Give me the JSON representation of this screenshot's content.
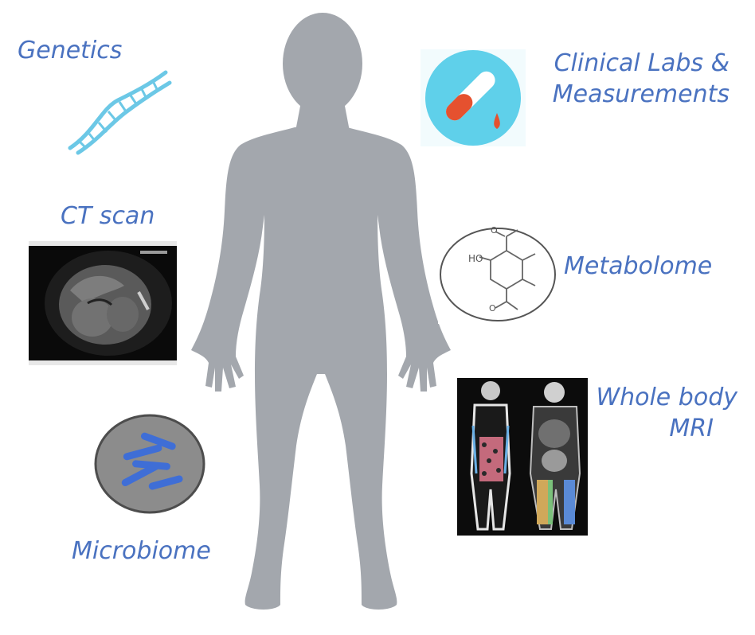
{
  "title": "",
  "human": {
    "icon": "human-body-silhouette",
    "color": "#a3a7ad"
  },
  "accent_color": "#4a72c0",
  "modalities": {
    "genetics": {
      "label": "Genetics",
      "icon": "dna-icon"
    },
    "clinical": {
      "label_line1": "Clinical Labs &",
      "label_line2": "Measurements",
      "icon": "test-tube-blood-icon"
    },
    "ct": {
      "label": "CT scan",
      "icon": "ct-scan-image"
    },
    "metabolome": {
      "label": "Metabolome",
      "icon": "molecule-structure-icon",
      "chem_label": "HO"
    },
    "microbiome": {
      "label": "Microbiome",
      "icon": "bacteria-dish-icon"
    },
    "mri": {
      "label_line1": "Whole body",
      "label_line2": "MRI",
      "icon": "mri-image"
    }
  }
}
